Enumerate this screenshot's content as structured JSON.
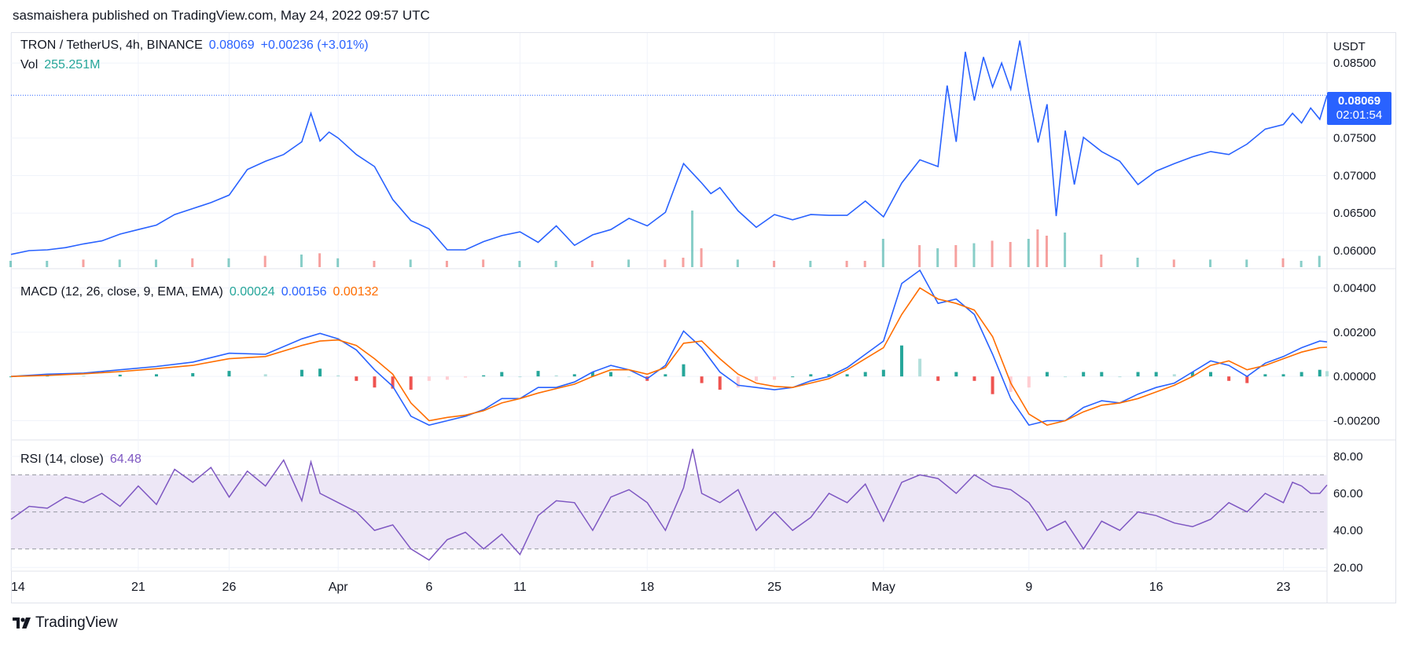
{
  "header": {
    "publisher_line": "sasmaishera published on TradingView.com, May 24, 2022 09:57 UTC"
  },
  "footer": {
    "logo_text": "TradingView"
  },
  "price_legend": {
    "symbol": "TRON / TetherUS, 4h, BINANCE",
    "last": "0.08069",
    "change": "+0.00236 (+3.01%)",
    "vol_label": "Vol",
    "vol_value": "255.251M"
  },
  "macd_legend": {
    "label": "MACD (12, 26, close, 9, EMA, EMA)",
    "hist": "0.00024",
    "macd": "0.00156",
    "signal": "0.00132"
  },
  "rsi_legend": {
    "label": "RSI (14, close)",
    "value": "64.48"
  },
  "price_tag": {
    "price": "0.08069",
    "countdown": "02:01:54"
  },
  "colors": {
    "price_line": "#2962ff",
    "macd_line": "#2962ff",
    "signal_line": "#ff6d00",
    "hist_up": "#26a69a",
    "hist_down": "#ef5350",
    "hist_up_light": "#b2dfdb",
    "hist_down_light": "#ffcdd2",
    "rsi_line": "#7e57c2",
    "rsi_band": "#ede7f6",
    "grid": "#f0f3fa",
    "vol_up": "#26a69a",
    "vol_down": "#ef5350"
  },
  "chart_data": [
    {
      "type": "line",
      "pane": "price",
      "title": "TRON / TetherUS, 4h, BINANCE",
      "y_unit": "USDT",
      "ylim": [
        0.0578,
        0.089
      ],
      "y_ticks": [
        "0.08500",
        "0.07500",
        "0.07000",
        "0.06500",
        "0.06000"
      ],
      "x_ticks": [
        "14",
        "21",
        "26",
        "Apr",
        "6",
        "11",
        "18",
        "25",
        "May",
        "9",
        "16",
        "23"
      ],
      "x_tick_day_index": [
        0,
        7,
        12,
        18,
        23,
        28,
        35,
        42,
        48,
        56,
        63,
        70
      ],
      "x_day_range": [
        0,
        72.4
      ],
      "grid": true,
      "series": [
        {
          "name": "Close",
          "x_days": [
            0,
            1,
            2,
            3,
            4,
            5,
            6,
            7,
            8,
            9,
            10,
            11,
            12,
            13,
            14,
            15,
            16,
            16.5,
            17,
            17.5,
            18,
            19,
            20,
            21,
            22,
            23,
            24,
            25,
            26,
            27,
            28,
            29,
            30,
            31,
            32,
            33,
            34,
            35,
            36,
            37,
            38,
            38.5,
            39,
            40,
            41,
            42,
            43,
            44,
            45,
            46,
            47,
            48,
            49,
            50,
            51,
            51.5,
            52,
            52.5,
            53,
            53.5,
            54,
            54.5,
            55,
            55.5,
            56,
            56.5,
            57,
            57.5,
            58,
            58.5,
            59,
            60,
            61,
            62,
            63,
            64,
            65,
            66,
            67,
            68,
            69,
            70,
            70.5,
            71,
            71.5,
            72,
            72.4
          ],
          "values": [
            0.0595,
            0.06,
            0.0601,
            0.0604,
            0.0609,
            0.0613,
            0.0622,
            0.0628,
            0.0634,
            0.0648,
            0.0656,
            0.0664,
            0.0674,
            0.0708,
            0.0719,
            0.0728,
            0.0745,
            0.0783,
            0.0746,
            0.0758,
            0.075,
            0.0728,
            0.0712,
            0.0668,
            0.064,
            0.0629,
            0.0601,
            0.0601,
            0.0612,
            0.062,
            0.0625,
            0.0611,
            0.0633,
            0.0607,
            0.0621,
            0.0628,
            0.0643,
            0.0633,
            0.0651,
            0.0716,
            0.069,
            0.0676,
            0.0684,
            0.0653,
            0.0631,
            0.0648,
            0.0641,
            0.0648,
            0.0647,
            0.0647,
            0.0666,
            0.0645,
            0.069,
            0.0721,
            0.0712,
            0.082,
            0.0745,
            0.0865,
            0.08,
            0.0858,
            0.0818,
            0.085,
            0.0815,
            0.088,
            0.081,
            0.0744,
            0.0795,
            0.0646,
            0.076,
            0.0688,
            0.0751,
            0.0732,
            0.0719,
            0.0688,
            0.0706,
            0.0716,
            0.0725,
            0.0732,
            0.0728,
            0.0742,
            0.0762,
            0.0768,
            0.0783,
            0.077,
            0.079,
            0.0775,
            0.0807
          ]
        }
      ]
    },
    {
      "type": "line",
      "pane": "macd",
      "title": "MACD (12, 26, close, 9, EMA, EMA)",
      "ylim": [
        -0.0028,
        0.0048
      ],
      "y_ticks": [
        "0.00400",
        "0.00200",
        "0.00000",
        "-0.00200"
      ],
      "x_days": [
        0,
        2,
        4,
        6,
        8,
        10,
        12,
        14,
        16,
        17,
        18,
        19,
        20,
        21,
        22,
        23,
        24,
        25,
        26,
        27,
        28,
        29,
        30,
        31,
        32,
        33,
        34,
        35,
        36,
        37,
        38,
        39,
        40,
        41,
        42,
        43,
        44,
        45,
        46,
        47,
        48,
        49,
        50,
        51,
        52,
        53,
        54,
        55,
        56,
        57,
        58,
        59,
        60,
        61,
        62,
        63,
        64,
        65,
        66,
        67,
        68,
        69,
        70,
        71,
        72,
        72.4
      ],
      "series": [
        {
          "name": "MACD",
          "values": [
            0.0,
            0.0001,
            0.00015,
            0.0003,
            0.00045,
            0.00065,
            0.00105,
            0.001,
            0.0017,
            0.00195,
            0.0017,
            0.0012,
            0.0003,
            -0.00045,
            -0.0018,
            -0.0022,
            -0.002,
            -0.0018,
            -0.0015,
            -0.001,
            -0.001,
            -0.0005,
            -0.0005,
            -0.00025,
            0.0002,
            0.0005,
            0.0003,
            -0.0001,
            0.0005,
            0.00205,
            0.0013,
            0.0002,
            -0.0004,
            -0.0005,
            -0.0006,
            -0.0005,
            -0.0002,
            0.0,
            0.0004,
            0.001,
            0.0016,
            0.0042,
            0.0048,
            0.0033,
            0.0035,
            0.0028,
            0.001,
            -0.001,
            -0.0022,
            -0.002,
            -0.002,
            -0.0014,
            -0.0011,
            -0.0012,
            -0.0008,
            -0.0005,
            -0.0003,
            0.0002,
            0.0007,
            0.0005,
            0.0,
            0.0006,
            0.0009,
            0.0013,
            0.0016,
            0.00156
          ]
        },
        {
          "name": "Signal",
          "values": [
            0.0,
            5e-05,
            0.00012,
            0.00022,
            0.00035,
            0.0005,
            0.0008,
            0.0009,
            0.0014,
            0.0016,
            0.00165,
            0.0014,
            0.0008,
            0.0001,
            -0.0012,
            -0.002,
            -0.00185,
            -0.00175,
            -0.00155,
            -0.0012,
            -0.001,
            -0.00075,
            -0.00055,
            -0.00035,
            0.0,
            0.0003,
            0.0003,
            0.0001,
            0.0004,
            0.0015,
            0.0016,
            0.0008,
            0.0001,
            -0.0003,
            -0.00045,
            -0.0005,
            -0.0003,
            -0.0001,
            0.0003,
            0.0008,
            0.0013,
            0.0028,
            0.004,
            0.0035,
            0.0033,
            0.003,
            0.0018,
            -0.0003,
            -0.0017,
            -0.0022,
            -0.002,
            -0.0016,
            -0.0013,
            -0.0012,
            -0.001,
            -0.0007,
            -0.0004,
            0.0,
            0.0005,
            0.0007,
            0.0003,
            0.0005,
            0.0008,
            0.0011,
            0.0013,
            0.00132
          ]
        },
        {
          "name": "Histogram",
          "values": [
            0.0,
            5e-05,
            3e-05,
            8e-05,
            0.0001,
            0.00015,
            0.00025,
            0.0001,
            0.0003,
            0.00035,
            5e-05,
            -0.0002,
            -0.0005,
            -0.00055,
            -0.0006,
            -0.0002,
            -0.00015,
            -5e-05,
            5e-05,
            0.0002,
            0.0,
            0.00025,
            5e-05,
            0.0001,
            0.0002,
            0.0002,
            0.0,
            -0.0002,
            0.0001,
            0.00055,
            -0.0003,
            -0.0006,
            -0.0005,
            -0.0002,
            -0.00015,
            0.0,
            0.0001,
            0.0001,
            0.0001,
            0.0002,
            0.0003,
            0.0014,
            0.0008,
            -0.0002,
            0.0002,
            -0.0002,
            -0.0008,
            -0.0007,
            -0.0005,
            0.0002,
            0.0,
            0.0002,
            0.0002,
            0.0,
            0.0002,
            0.0002,
            0.0001,
            0.0002,
            0.0002,
            -0.0002,
            -0.0003,
            0.0001,
            0.0001,
            0.0002,
            0.0003,
            0.00024
          ]
        }
      ]
    },
    {
      "type": "line",
      "pane": "rsi",
      "title": "RSI (14, close)",
      "ylim": [
        18,
        88
      ],
      "y_ticks": [
        "80.00",
        "60.00",
        "40.00",
        "20.00"
      ],
      "band": [
        30,
        70
      ],
      "midline": 50,
      "x_days": [
        0,
        1,
        2,
        3,
        4,
        5,
        6,
        7,
        8,
        9,
        10,
        11,
        12,
        13,
        14,
        15,
        16,
        16.5,
        17,
        18,
        19,
        20,
        21,
        22,
        23,
        24,
        25,
        26,
        27,
        28,
        29,
        30,
        31,
        32,
        33,
        34,
        35,
        36,
        37,
        37.5,
        38,
        39,
        40,
        41,
        42,
        43,
        44,
        45,
        46,
        47,
        48,
        49,
        50,
        51,
        52,
        53,
        54,
        55,
        56,
        56.5,
        57,
        58,
        59,
        60,
        61,
        62,
        63,
        64,
        65,
        66,
        67,
        68,
        69,
        70,
        70.5,
        71,
        71.5,
        72,
        72.4
      ],
      "series": [
        {
          "name": "RSI",
          "values": [
            46,
            53,
            52,
            58,
            55,
            60,
            53,
            64,
            54,
            73,
            66,
            74,
            58,
            72,
            64,
            78,
            56,
            77,
            60,
            55,
            50,
            40,
            43,
            30,
            24,
            35,
            39,
            30,
            38,
            27,
            48,
            56,
            55,
            40,
            58,
            62,
            55,
            40,
            63,
            84,
            60,
            55,
            62,
            40,
            50,
            40,
            47,
            60,
            55,
            65,
            45,
            66,
            70,
            68,
            60,
            70,
            64,
            62,
            55,
            48,
            40,
            45,
            30,
            45,
            40,
            50,
            48,
            44,
            42,
            46,
            55,
            50,
            60,
            55,
            66,
            64,
            60,
            60,
            64.48
          ]
        }
      ]
    },
    {
      "type": "bar",
      "pane": "volume",
      "title": "Vol",
      "note": "relative volume bars across the period (0-1 scale of pane max)",
      "x_days": [
        0,
        2,
        4,
        6,
        8,
        10,
        12,
        14,
        16,
        17,
        18,
        20,
        22,
        24,
        26,
        28,
        30,
        32,
        34,
        36,
        37,
        37.5,
        38,
        40,
        42,
        44,
        46,
        47,
        48,
        50,
        51,
        52,
        53,
        54,
        55,
        56,
        56.5,
        57,
        58,
        60,
        62,
        64,
        66,
        68,
        70,
        71,
        72
      ],
      "values": [
        0.1,
        0.1,
        0.12,
        0.12,
        0.12,
        0.14,
        0.14,
        0.18,
        0.2,
        0.22,
        0.14,
        0.1,
        0.12,
        0.1,
        0.12,
        0.1,
        0.1,
        0.1,
        0.12,
        0.12,
        0.15,
        0.9,
        0.3,
        0.12,
        0.1,
        0.1,
        0.1,
        0.1,
        0.45,
        0.35,
        0.3,
        0.35,
        0.38,
        0.42,
        0.4,
        0.45,
        0.6,
        0.5,
        0.55,
        0.2,
        0.15,
        0.12,
        0.12,
        0.12,
        0.14,
        0.1,
        0.18
      ],
      "up": [
        true,
        true,
        false,
        true,
        true,
        false,
        true,
        false,
        true,
        false,
        true,
        false,
        true,
        false,
        false,
        true,
        true,
        false,
        true,
        false,
        false,
        true,
        false,
        true,
        false,
        true,
        false,
        false,
        true,
        false,
        true,
        false,
        true,
        false,
        false,
        true,
        false,
        false,
        true,
        false,
        true,
        false,
        true,
        true,
        false,
        true,
        true
      ]
    }
  ]
}
